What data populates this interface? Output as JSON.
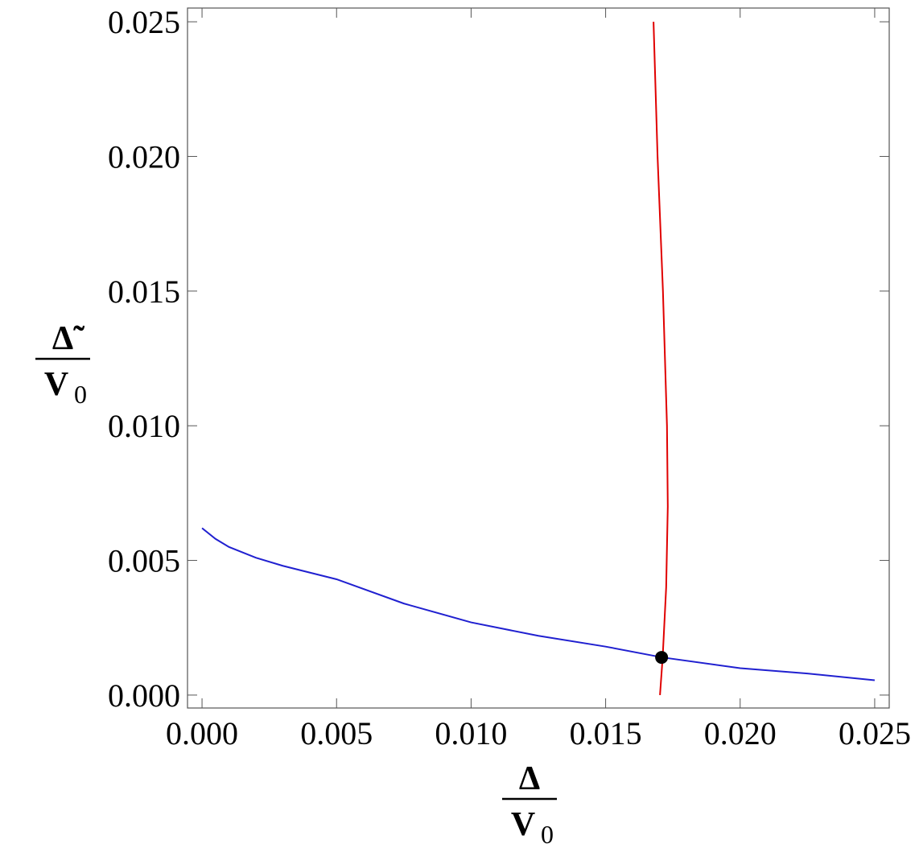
{
  "chart_data": {
    "type": "line",
    "xlabel": {
      "numerator": "Δ",
      "denominator": "V",
      "denominator_subscript": "0"
    },
    "ylabel": {
      "numerator": "Δ̃",
      "denominator": "V",
      "denominator_subscript": "0"
    },
    "xlim": [
      -0.00054,
      0.02554
    ],
    "ylim": [
      -0.00048,
      0.02551
    ],
    "xticks": [
      {
        "value": 0,
        "label": "0.000"
      },
      {
        "value": 0.005,
        "label": "0.005"
      },
      {
        "value": 0.01,
        "label": "0.010"
      },
      {
        "value": 0.015,
        "label": "0.015"
      },
      {
        "value": 0.02,
        "label": "0.020"
      },
      {
        "value": 0.025,
        "label": "0.025"
      }
    ],
    "yticks": [
      {
        "value": 0,
        "label": "0.000"
      },
      {
        "value": 0.005,
        "label": "0.005"
      },
      {
        "value": 0.01,
        "label": "0.010"
      },
      {
        "value": 0.015,
        "label": "0.015"
      },
      {
        "value": 0.02,
        "label": "0.020"
      },
      {
        "value": 0.025,
        "label": "0.025"
      }
    ],
    "series": [
      {
        "color": "#2020d0",
        "x": [
          0,
          0.0005,
          0.001,
          0.002,
          0.003,
          0.005,
          0.0075,
          0.01,
          0.0125,
          0.015,
          0.0171,
          0.02,
          0.0225,
          0.025
        ],
        "values": [
          0.0062,
          0.0058,
          0.0055,
          0.0051,
          0.0048,
          0.0043,
          0.0034,
          0.0027,
          0.0022,
          0.0018,
          0.0014,
          0.001,
          0.0008,
          0.00055
        ]
      },
      {
        "color": "#e00000",
        "x": [
          0.01678,
          0.01693,
          0.01713,
          0.01728,
          0.01731,
          0.01725,
          0.01712,
          0.01702
        ],
        "values": [
          0.025,
          0.02,
          0.015,
          0.01,
          0.007,
          0.004,
          0.0014,
          0
        ]
      }
    ],
    "points": [
      {
        "x": 0.01708,
        "y": 0.0014,
        "color": "#000000"
      }
    ]
  }
}
